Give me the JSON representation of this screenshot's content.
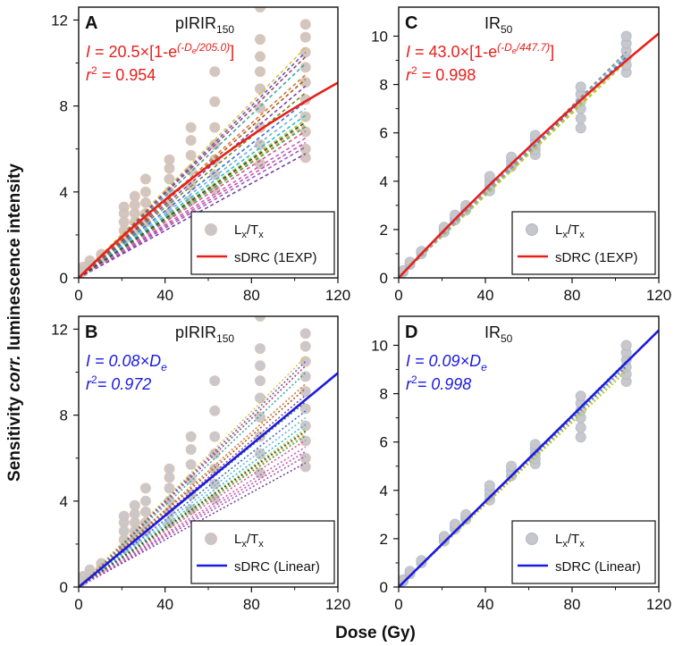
{
  "figure": {
    "xlabel": "Dose (Gy)",
    "ylabel_pre": "Sensitivity ",
    "ylabel_italic": "corr.",
    "ylabel_post": " luminescence intensity"
  },
  "chart_data": [
    {
      "id": "A",
      "type": "scatter",
      "panel_label": "A",
      "title_main": "pIRIR",
      "title_sub": "150",
      "eq_color": "#e8201c",
      "eq_intercept_text": "20.5",
      "eq_exp_text": "(-D",
      "eq_exp_sub": "e",
      "eq_exp_tail": "/205.0)",
      "r2_value": "0.954",
      "r2_italic": false,
      "fit_model": "exp",
      "fit_params": {
        "Imax": 20.5,
        "D0": 205.0
      },
      "fit_color": "#e8201c",
      "xlim": [
        0,
        120
      ],
      "ylim": [
        0,
        12.6
      ],
      "xticks": [
        "0",
        "40",
        "80",
        "120"
      ],
      "yticks": [
        "0",
        "4",
        "8",
        "12"
      ],
      "show_xticklabels": true,
      "legend": [
        "L",
        "x",
        "/T",
        "x",
        "sDRC (1EXP)"
      ],
      "doses": [
        0,
        2.1,
        5.2,
        10.5,
        21,
        26,
        31,
        42,
        52,
        63,
        84,
        105
      ],
      "points": [
        [
          0,
          0.1
        ],
        [
          0,
          0.2
        ],
        [
          2.1,
          0.3
        ],
        [
          2.1,
          0.5
        ],
        [
          5.2,
          0.6
        ],
        [
          5.2,
          0.8
        ],
        [
          10.5,
          0.9
        ],
        [
          10.5,
          1.1
        ],
        [
          21,
          1.8
        ],
        [
          21,
          2.2
        ],
        [
          21,
          2.6
        ],
        [
          21,
          3.0
        ],
        [
          21,
          3.3
        ],
        [
          26,
          2.2
        ],
        [
          26,
          2.6
        ],
        [
          26,
          3.0
        ],
        [
          26,
          3.4
        ],
        [
          26,
          3.8
        ],
        [
          31,
          2.6
        ],
        [
          31,
          3.0
        ],
        [
          31,
          3.5
        ],
        [
          31,
          4.0
        ],
        [
          31,
          4.6
        ],
        [
          42,
          3.0
        ],
        [
          42,
          3.5
        ],
        [
          42,
          4.0
        ],
        [
          42,
          4.6
        ],
        [
          42,
          5.1
        ],
        [
          42,
          5.5
        ],
        [
          52,
          3.6
        ],
        [
          52,
          4.3
        ],
        [
          52,
          5.0
        ],
        [
          52,
          5.7
        ],
        [
          52,
          6.4
        ],
        [
          52,
          7.0
        ],
        [
          63,
          4.1
        ],
        [
          63,
          4.8
        ],
        [
          63,
          5.5
        ],
        [
          63,
          6.2
        ],
        [
          63,
          7.0
        ],
        [
          63,
          8.2
        ],
        [
          63,
          9.6
        ],
        [
          84,
          5.3
        ],
        [
          84,
          6.2
        ],
        [
          84,
          7.0
        ],
        [
          84,
          7.9
        ],
        [
          84,
          8.8
        ],
        [
          84,
          9.6
        ],
        [
          84,
          10.3
        ],
        [
          84,
          11.1
        ],
        [
          84,
          12.6
        ],
        [
          105,
          5.6
        ],
        [
          105,
          6.0
        ],
        [
          105,
          6.8
        ],
        [
          105,
          7.5
        ],
        [
          105,
          8.3
        ],
        [
          105,
          9.1
        ],
        [
          105,
          9.8
        ],
        [
          105,
          10.5
        ],
        [
          105,
          11.2
        ],
        [
          105,
          11.8
        ]
      ],
      "aliquot_slopes": [
        0.075,
        0.072,
        0.07,
        0.068,
        0.058,
        0.055,
        0.06,
        0.065,
        0.078,
        0.082,
        0.09,
        0.095,
        0.098,
        0.1,
        0.102,
        0.085,
        0.088,
        0.067,
        0.062,
        0.069
      ],
      "aliquot_colors": [
        "#6fb3d9",
        "#28b8d6",
        "#9ad13a",
        "#e0b22b",
        "#9a59c5",
        "#7a3f9a",
        "#c94fa8",
        "#e05080",
        "#3b6fd6",
        "#6a8a2a",
        "#d8783a",
        "#3aa8a0",
        "#b04060",
        "#5a5ad0",
        "#e0c040",
        "#8040b0",
        "#a06020",
        "#40a060",
        "#c060c0",
        "#404040"
      ]
    },
    {
      "id": "C",
      "type": "scatter",
      "panel_label": "C",
      "title_main": "IR",
      "title_sub": "50",
      "eq_color": "#e8201c",
      "eq_intercept_text": "43.0",
      "eq_exp_text": "(-D",
      "eq_exp_sub": "e",
      "eq_exp_tail": "/447.7)",
      "r2_value": "0.998",
      "r2_italic": false,
      "fit_model": "exp",
      "fit_params": {
        "Imax": 43.0,
        "D0": 447.7
      },
      "fit_color": "#e8201c",
      "xlim": [
        0,
        120
      ],
      "ylim": [
        0,
        11.2
      ],
      "xticks": [
        "0",
        "40",
        "80",
        "120"
      ],
      "yticks": [
        "0",
        "2",
        "4",
        "6",
        "8",
        "10"
      ],
      "show_xticklabels": true,
      "legend": [
        "L",
        "x",
        "/T",
        "x",
        "sDRC (1EXP)"
      ],
      "points": [
        [
          0,
          0.0
        ],
        [
          0,
          0.05
        ],
        [
          2.1,
          0.25
        ],
        [
          2.1,
          0.3
        ],
        [
          5.2,
          0.55
        ],
        [
          5.2,
          0.65
        ],
        [
          10.5,
          1.0
        ],
        [
          10.5,
          1.1
        ],
        [
          21,
          1.9
        ],
        [
          21,
          2.0
        ],
        [
          21,
          2.1
        ],
        [
          26,
          2.4
        ],
        [
          26,
          2.5
        ],
        [
          26,
          2.6
        ],
        [
          31,
          2.8
        ],
        [
          31,
          2.9
        ],
        [
          31,
          3.0
        ],
        [
          42,
          3.6
        ],
        [
          42,
          3.8
        ],
        [
          42,
          4.0
        ],
        [
          42,
          4.2
        ],
        [
          52,
          4.6
        ],
        [
          52,
          4.8
        ],
        [
          52,
          5.0
        ],
        [
          63,
          5.1
        ],
        [
          63,
          5.3
        ],
        [
          63,
          5.5
        ],
        [
          63,
          5.7
        ],
        [
          63,
          5.9
        ],
        [
          84,
          6.2
        ],
        [
          84,
          6.6
        ],
        [
          84,
          7.0
        ],
        [
          84,
          7.3
        ],
        [
          84,
          7.6
        ],
        [
          84,
          7.9
        ],
        [
          105,
          8.5
        ],
        [
          105,
          8.8
        ],
        [
          105,
          9.1
        ],
        [
          105,
          9.4
        ],
        [
          105,
          9.7
        ],
        [
          105,
          10.0
        ]
      ],
      "aliquot_slopes": [
        0.085,
        0.087,
        0.089,
        0.086,
        0.088
      ],
      "aliquot_colors": [
        "#9ad13a",
        "#3b6fd6",
        "#8a8a8a",
        "#e0b22b",
        "#6fb3d9"
      ]
    },
    {
      "id": "B",
      "type": "scatter",
      "panel_label": "B",
      "title_main": "pIRIR",
      "title_sub": "150",
      "eq_color": "#1b1be0",
      "eq_linear_slope": "0.08",
      "eq_linear_sub": "e",
      "r2_value": "0.972",
      "r2_italic": true,
      "fit_model": "linear",
      "fit_params": {
        "slope": 0.083
      },
      "fit_color": "#1b1be0",
      "xlim": [
        0,
        120
      ],
      "ylim": [
        0,
        12.6
      ],
      "xticks": [
        "0",
        "40",
        "80",
        "120"
      ],
      "yticks": [
        "0",
        "4",
        "8",
        "12"
      ],
      "show_xticklabels": true,
      "legend": [
        "L",
        "x",
        "/T",
        "x",
        "sDRC (Linear)"
      ],
      "points": [
        [
          0,
          0.1
        ],
        [
          0,
          0.2
        ],
        [
          2.1,
          0.3
        ],
        [
          2.1,
          0.5
        ],
        [
          5.2,
          0.6
        ],
        [
          5.2,
          0.8
        ],
        [
          10.5,
          0.9
        ],
        [
          10.5,
          1.1
        ],
        [
          21,
          1.8
        ],
        [
          21,
          2.2
        ],
        [
          21,
          2.6
        ],
        [
          21,
          3.0
        ],
        [
          21,
          3.3
        ],
        [
          26,
          2.2
        ],
        [
          26,
          2.6
        ],
        [
          26,
          3.0
        ],
        [
          26,
          3.4
        ],
        [
          26,
          3.8
        ],
        [
          31,
          2.6
        ],
        [
          31,
          3.0
        ],
        [
          31,
          3.5
        ],
        [
          31,
          4.0
        ],
        [
          31,
          4.6
        ],
        [
          42,
          3.0
        ],
        [
          42,
          3.5
        ],
        [
          42,
          4.0
        ],
        [
          42,
          4.6
        ],
        [
          42,
          5.1
        ],
        [
          42,
          5.5
        ],
        [
          52,
          3.6
        ],
        [
          52,
          4.3
        ],
        [
          52,
          5.0
        ],
        [
          52,
          5.7
        ],
        [
          52,
          6.4
        ],
        [
          52,
          7.0
        ],
        [
          63,
          4.1
        ],
        [
          63,
          4.8
        ],
        [
          63,
          5.5
        ],
        [
          63,
          6.2
        ],
        [
          63,
          7.0
        ],
        [
          63,
          8.2
        ],
        [
          63,
          9.6
        ],
        [
          84,
          5.3
        ],
        [
          84,
          6.2
        ],
        [
          84,
          7.0
        ],
        [
          84,
          7.9
        ],
        [
          84,
          8.8
        ],
        [
          84,
          9.6
        ],
        [
          84,
          10.3
        ],
        [
          84,
          11.1
        ],
        [
          84,
          12.6
        ],
        [
          105,
          5.6
        ],
        [
          105,
          6.0
        ],
        [
          105,
          6.8
        ],
        [
          105,
          7.5
        ],
        [
          105,
          8.3
        ],
        [
          105,
          9.1
        ],
        [
          105,
          9.8
        ],
        [
          105,
          10.5
        ],
        [
          105,
          11.2
        ],
        [
          105,
          11.8
        ]
      ],
      "aliquot_slopes": [
        0.075,
        0.072,
        0.07,
        0.068,
        0.058,
        0.055,
        0.06,
        0.065,
        0.078,
        0.082,
        0.09,
        0.095,
        0.098,
        0.1,
        0.102,
        0.085,
        0.088,
        0.067,
        0.062,
        0.069
      ],
      "aliquot_colors": [
        "#6fb3d9",
        "#28b8d6",
        "#9ad13a",
        "#e0b22b",
        "#9a59c5",
        "#7a3f9a",
        "#c94fa8",
        "#e05080",
        "#3b6fd6",
        "#6a8a2a",
        "#d8783a",
        "#3aa8a0",
        "#b04060",
        "#5a5ad0",
        "#e0c040",
        "#8040b0",
        "#a06020",
        "#40a060",
        "#c060c0",
        "#404040"
      ]
    },
    {
      "id": "D",
      "type": "scatter",
      "panel_label": "D",
      "title_main": "IR",
      "title_sub": "50",
      "eq_color": "#1b1be0",
      "eq_linear_slope": "0.09",
      "eq_linear_sub": "e",
      "r2_value": "0.998",
      "r2_italic": true,
      "fit_model": "linear",
      "fit_params": {
        "slope": 0.0885
      },
      "fit_color": "#1b1be0",
      "xlim": [
        0,
        120
      ],
      "ylim": [
        0,
        11.2
      ],
      "xticks": [
        "0",
        "40",
        "80",
        "120"
      ],
      "yticks": [
        "0",
        "2",
        "4",
        "6",
        "8",
        "10"
      ],
      "show_xticklabels": true,
      "legend": [
        "L",
        "x",
        "/T",
        "x",
        "sDRC (Linear)"
      ],
      "points": [
        [
          0,
          0.0
        ],
        [
          0,
          0.05
        ],
        [
          2.1,
          0.25
        ],
        [
          2.1,
          0.3
        ],
        [
          5.2,
          0.55
        ],
        [
          5.2,
          0.65
        ],
        [
          10.5,
          1.0
        ],
        [
          10.5,
          1.1
        ],
        [
          21,
          1.9
        ],
        [
          21,
          2.0
        ],
        [
          21,
          2.1
        ],
        [
          26,
          2.4
        ],
        [
          26,
          2.5
        ],
        [
          26,
          2.6
        ],
        [
          31,
          2.8
        ],
        [
          31,
          2.9
        ],
        [
          31,
          3.0
        ],
        [
          42,
          3.6
        ],
        [
          42,
          3.8
        ],
        [
          42,
          4.0
        ],
        [
          42,
          4.2
        ],
        [
          52,
          4.6
        ],
        [
          52,
          4.8
        ],
        [
          52,
          5.0
        ],
        [
          63,
          5.1
        ],
        [
          63,
          5.3
        ],
        [
          63,
          5.5
        ],
        [
          63,
          5.7
        ],
        [
          63,
          5.9
        ],
        [
          84,
          6.2
        ],
        [
          84,
          6.6
        ],
        [
          84,
          7.0
        ],
        [
          84,
          7.3
        ],
        [
          84,
          7.6
        ],
        [
          84,
          7.9
        ],
        [
          105,
          8.5
        ],
        [
          105,
          8.8
        ],
        [
          105,
          9.1
        ],
        [
          105,
          9.4
        ],
        [
          105,
          9.7
        ],
        [
          105,
          10.0
        ]
      ],
      "aliquot_slopes": [
        0.085,
        0.087,
        0.089,
        0.086,
        0.088
      ],
      "aliquot_colors": [
        "#9ad13a",
        "#3b6fd6",
        "#8a8a8a",
        "#e0b22b",
        "#6fb3d9"
      ]
    }
  ]
}
